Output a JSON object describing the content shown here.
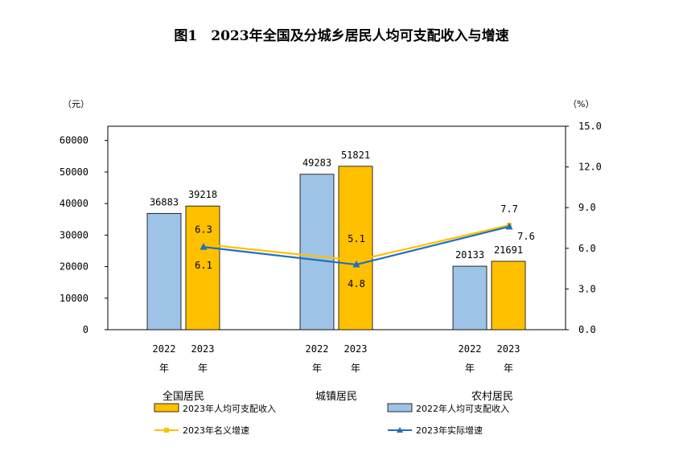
{
  "title": "图1　2023年全国及分城乡居民人均可支配收入与增速",
  "chart_data": {
    "type": "bar",
    "left_unit": "（元）",
    "right_unit": "（%）",
    "groups": [
      "全国居民",
      "城镇居民",
      "农村居民"
    ],
    "bar_years": [
      "2022",
      "2023"
    ],
    "year_suffix": "年",
    "series": [
      {
        "name": "2022年人均可支配收入",
        "type": "bar",
        "axis": "left",
        "color": "#9DC3E6",
        "values": [
          36883,
          49283,
          20133
        ]
      },
      {
        "name": "2023年人均可支配收入",
        "type": "bar",
        "axis": "left",
        "color": "#FFC000",
        "values": [
          39218,
          51821,
          21691
        ]
      },
      {
        "name": "2023年名义增速",
        "type": "line",
        "axis": "right",
        "color": "#FFC000",
        "values": [
          6.3,
          5.1,
          7.7
        ]
      },
      {
        "name": "2023年实际增速",
        "type": "line",
        "axis": "right",
        "color": "#1F6FC0",
        "values": [
          6.1,
          4.8,
          7.6
        ]
      }
    ],
    "left_ticks": [
      "0",
      "10000",
      "20000",
      "30000",
      "40000",
      "50000",
      "60000"
    ],
    "right_ticks": [
      "0.0",
      "3.0",
      "6.0",
      "9.0",
      "12.0",
      "15.0"
    ],
    "ylim_left": [
      0,
      64516
    ],
    "ylim_right": [
      0,
      15.0
    ],
    "legend_position": "bottom"
  }
}
